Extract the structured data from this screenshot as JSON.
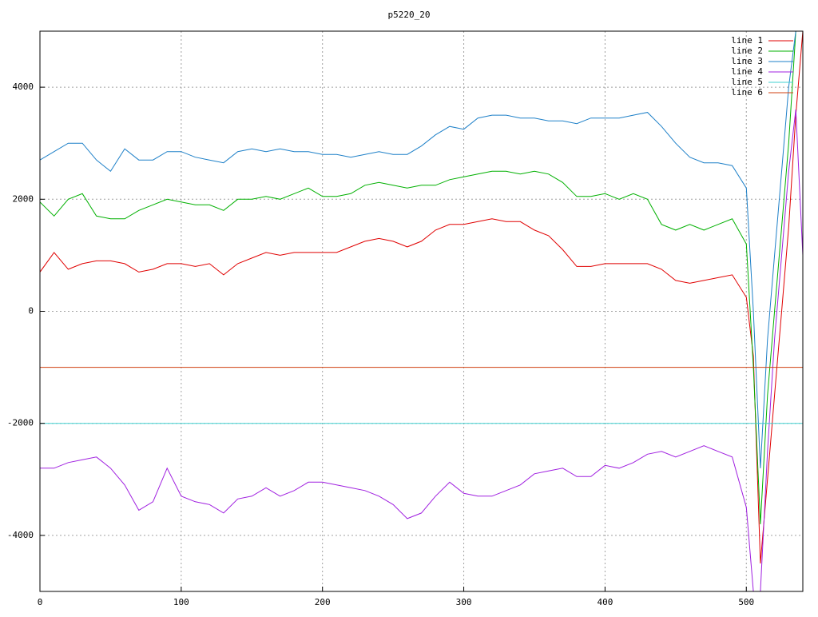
{
  "chart_data": {
    "type": "line",
    "title": "p5220_20",
    "x": [
      0,
      10,
      20,
      30,
      40,
      50,
      60,
      70,
      80,
      90,
      100,
      110,
      120,
      130,
      140,
      150,
      160,
      170,
      180,
      190,
      200,
      210,
      220,
      230,
      240,
      250,
      260,
      270,
      280,
      290,
      300,
      310,
      320,
      330,
      340,
      350,
      360,
      370,
      380,
      390,
      400,
      410,
      420,
      430,
      440,
      450,
      460,
      470,
      480,
      490,
      500,
      505,
      510,
      515,
      520,
      525,
      530,
      535,
      540
    ],
    "series": [
      {
        "name": "line 1",
        "color": "#e00000",
        "values": [
          700,
          1050,
          750,
          850,
          900,
          900,
          850,
          700,
          750,
          850,
          850,
          800,
          850,
          650,
          850,
          950,
          1050,
          1000,
          1050,
          1050,
          1050,
          1050,
          1150,
          1250,
          1300,
          1250,
          1150,
          1250,
          1450,
          1550,
          1550,
          1600,
          1650,
          1600,
          1600,
          1450,
          1350,
          1100,
          800,
          800,
          850,
          850,
          850,
          850,
          750,
          550,
          500,
          550,
          600,
          650,
          250,
          -800,
          -4500,
          -3000,
          -1500,
          0,
          1500,
          3500,
          5000
        ]
      },
      {
        "name": "line 2",
        "color": "#00b000",
        "values": [
          1950,
          1700,
          2000,
          2100,
          1700,
          1650,
          1650,
          1800,
          1900,
          2000,
          1950,
          1900,
          1900,
          1800,
          2000,
          2000,
          2050,
          2000,
          2100,
          2200,
          2050,
          2050,
          2100,
          2250,
          2300,
          2250,
          2200,
          2250,
          2250,
          2350,
          2400,
          2450,
          2500,
          2500,
          2450,
          2500,
          2450,
          2300,
          2050,
          2050,
          2100,
          2000,
          2100,
          2000,
          1550,
          1450,
          1550,
          1450,
          1550,
          1650,
          1200,
          -1000,
          -3800,
          -1500,
          0,
          1500,
          3000,
          5000,
          5000
        ]
      },
      {
        "name": "line 3",
        "color": "#1e80c8",
        "values": [
          2700,
          2850,
          3000,
          3000,
          2700,
          2500,
          2900,
          2700,
          2700,
          2850,
          2850,
          2750,
          2700,
          2650,
          2850,
          2900,
          2850,
          2900,
          2850,
          2850,
          2800,
          2800,
          2750,
          2800,
          2850,
          2800,
          2800,
          2950,
          3150,
          3300,
          3250,
          3450,
          3500,
          3500,
          3450,
          3450,
          3400,
          3400,
          3350,
          3450,
          3450,
          3450,
          3500,
          3550,
          3300,
          3000,
          2750,
          2650,
          2650,
          2600,
          2200,
          0,
          -2800,
          -500,
          1000,
          2500,
          4000,
          5000,
          5000
        ]
      },
      {
        "name": "line 4",
        "color": "#a020e0",
        "values": [
          -2800,
          -2800,
          -2700,
          -2650,
          -2600,
          -2800,
          -3100,
          -3550,
          -3400,
          -2800,
          -3300,
          -3400,
          -3450,
          -3600,
          -3350,
          -3300,
          -3150,
          -3300,
          -3200,
          -3050,
          -3050,
          -3100,
          -3150,
          -3200,
          -3300,
          -3450,
          -3700,
          -3600,
          -3300,
          -3050,
          -3250,
          -3300,
          -3300,
          -3200,
          -3100,
          -2900,
          -2850,
          -2800,
          -2950,
          -2950,
          -2750,
          -2800,
          -2700,
          -2550,
          -2500,
          -2600,
          -2500,
          -2400,
          -2500,
          -2600,
          -3500,
          -5000,
          -5000,
          -2500,
          -500,
          1000,
          2500,
          3600,
          1000
        ]
      },
      {
        "name": "line 5",
        "color": "#40d0d0",
        "values": [
          -2000,
          -2000,
          -2000,
          -2000,
          -2000,
          -2000,
          -2000,
          -2000,
          -2000,
          -2000,
          -2000,
          -2000,
          -2000,
          -2000,
          -2000,
          -2000,
          -2000,
          -2000,
          -2000,
          -2000,
          -2000,
          -2000,
          -2000,
          -2000,
          -2000,
          -2000,
          -2000,
          -2000,
          -2000,
          -2000,
          -2000,
          -2000,
          -2000,
          -2000,
          -2000,
          -2000,
          -2000,
          -2000,
          -2000,
          -2000,
          -2000,
          -2000,
          -2000,
          -2000,
          -2000,
          -2000,
          -2000,
          -2000,
          -2000,
          -2000,
          -2000,
          -2000,
          -2000,
          -2000,
          -2000,
          -2000,
          -2000,
          -2000,
          -2000
        ]
      },
      {
        "name": "line 6",
        "color": "#d04010",
        "values": [
          -1000,
          -1000,
          -1000,
          -1000,
          -1000,
          -1000,
          -1000,
          -1000,
          -1000,
          -1000,
          -1000,
          -1000,
          -1000,
          -1000,
          -1000,
          -1000,
          -1000,
          -1000,
          -1000,
          -1000,
          -1000,
          -1000,
          -1000,
          -1000,
          -1000,
          -1000,
          -1000,
          -1000,
          -1000,
          -1000,
          -1000,
          -1000,
          -1000,
          -1000,
          -1000,
          -1000,
          -1000,
          -1000,
          -1000,
          -1000,
          -1000,
          -1000,
          -1000,
          -1000,
          -1000,
          -1000,
          -1000,
          -1000,
          -1000,
          -1000,
          -1000,
          -1000,
          -1000,
          -1000,
          -1000,
          -1000,
          -1000,
          -1000,
          -1000
        ]
      }
    ],
    "xlim": [
      0,
      540
    ],
    "ylim": [
      -5000,
      5000
    ],
    "xticks": [
      0,
      100,
      200,
      300,
      400,
      500
    ],
    "yticks": [
      -4000,
      -2000,
      0,
      2000,
      4000
    ],
    "grid": true,
    "legend": "top-right"
  }
}
